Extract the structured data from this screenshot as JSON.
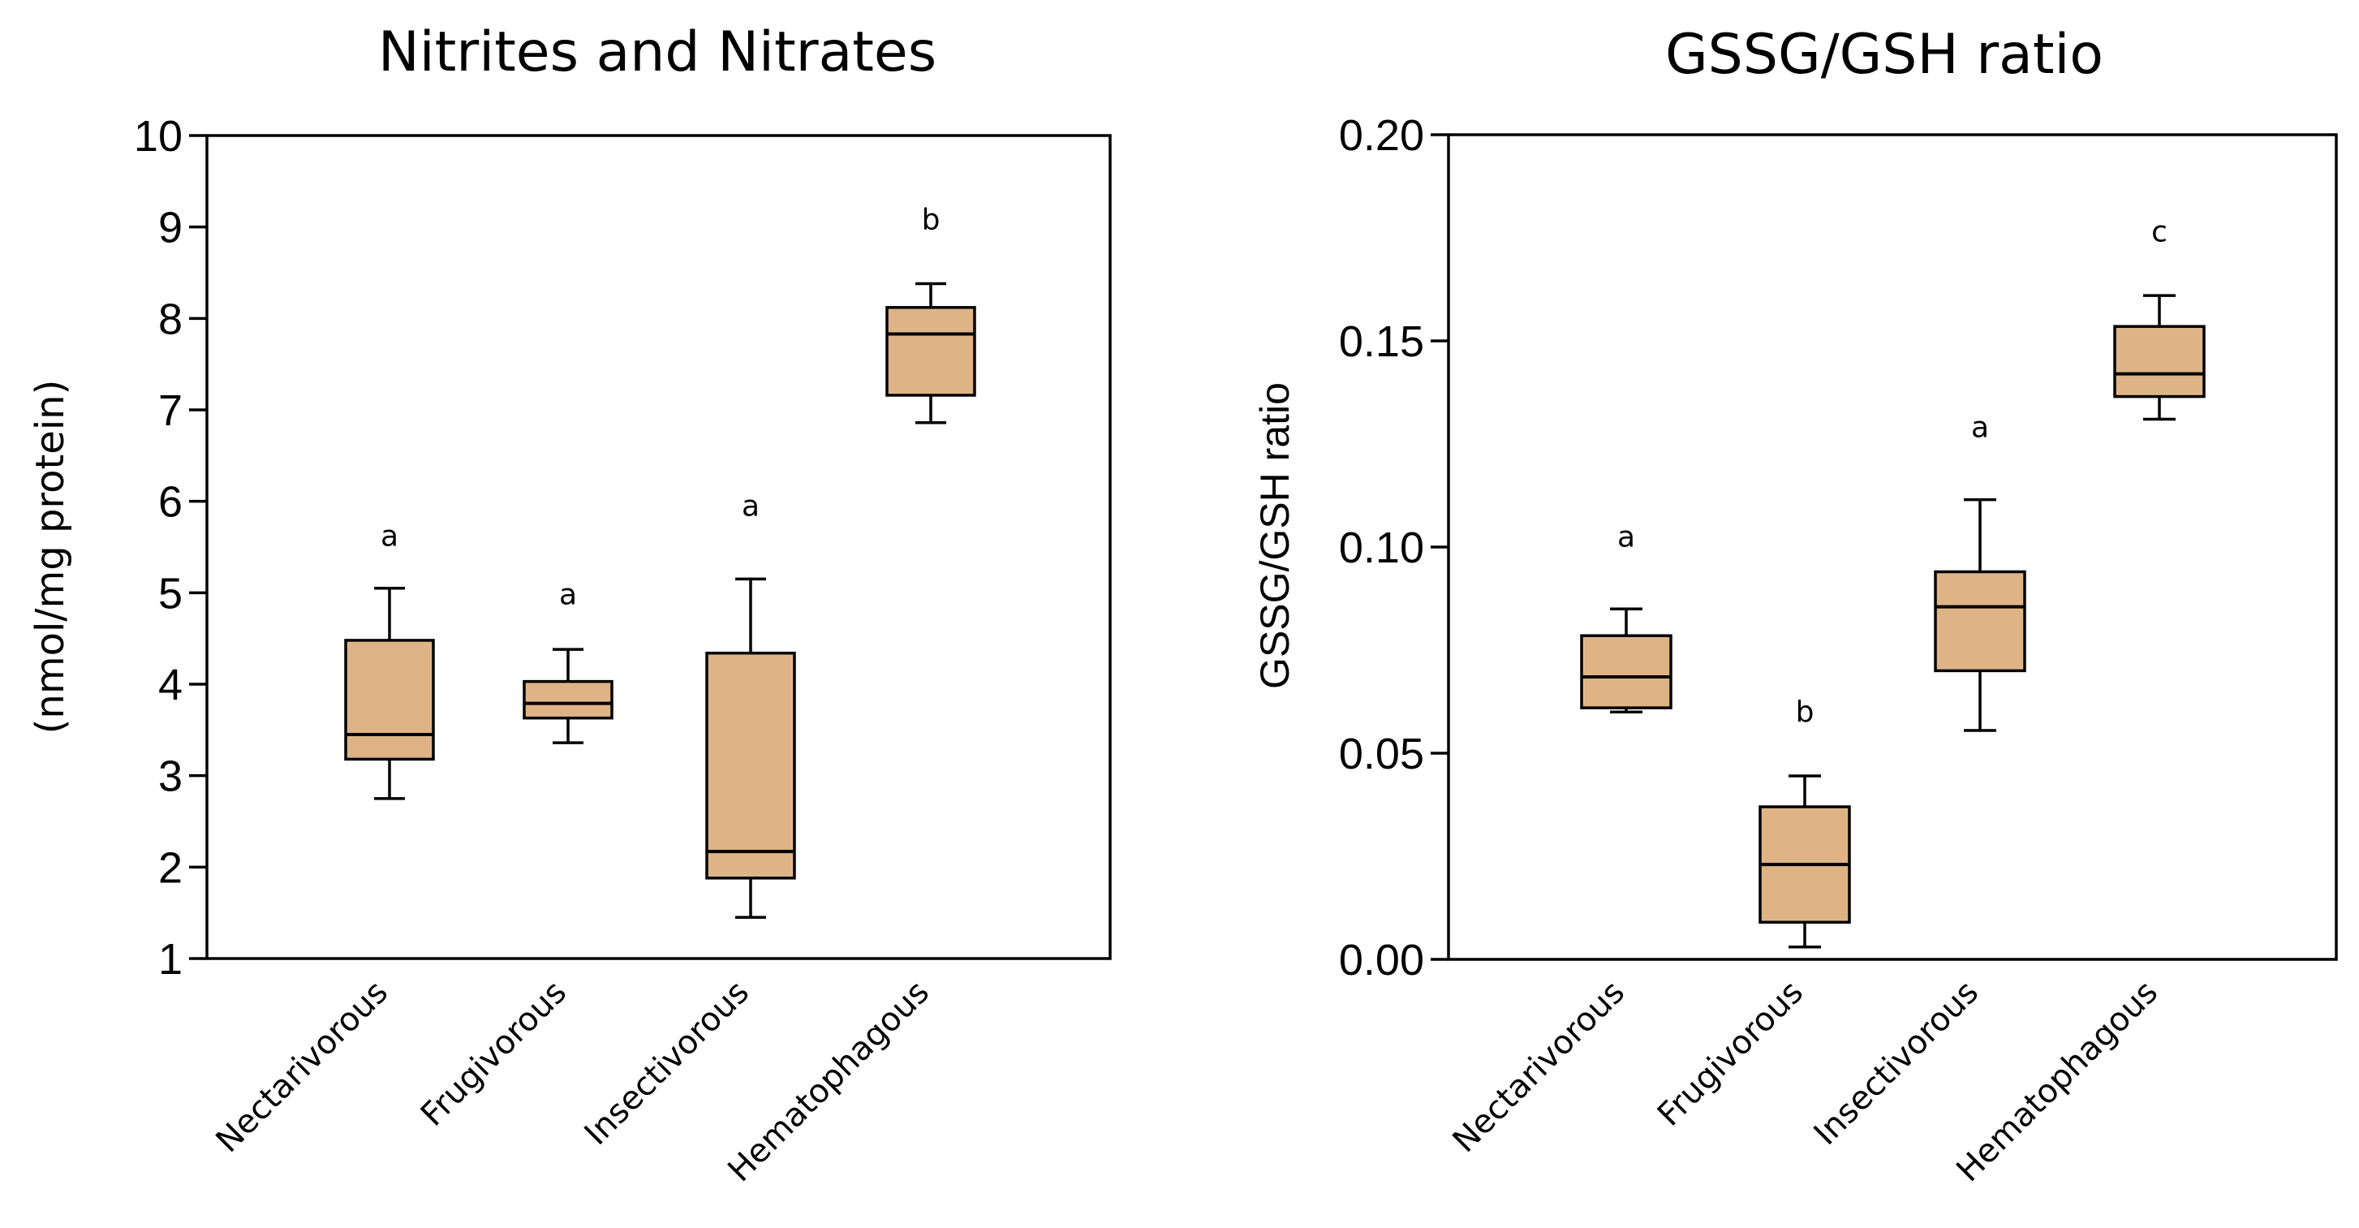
{
  "box_color": "#deb487",
  "chart_data": [
    {
      "type": "boxplot",
      "title": "Nitrites and Nitrates",
      "xlabel": "",
      "ylabel": "(nmol/mg protein)",
      "ylim": [
        1,
        10
      ],
      "yticks": [
        "1",
        "2",
        "3",
        "4",
        "5",
        "6",
        "7",
        "8",
        "9",
        "10"
      ],
      "categories": [
        "Nectarivorous",
        "Frugivorous",
        "Insectivorous",
        "Hematophagous"
      ],
      "boxes": [
        {
          "category": "Nectarivorous",
          "min": 2.75,
          "q1": 3.18,
          "median": 3.45,
          "q3": 4.48,
          "max": 5.05,
          "label": "a"
        },
        {
          "category": "Frugivorous",
          "min": 3.36,
          "q1": 3.63,
          "median": 3.79,
          "q3": 4.03,
          "max": 4.38,
          "label": "a"
        },
        {
          "category": "Insectivorous",
          "min": 1.45,
          "q1": 1.88,
          "median": 2.17,
          "q3": 4.34,
          "max": 5.15,
          "label": "a"
        },
        {
          "category": "Hematophagous",
          "min": 6.86,
          "q1": 7.16,
          "median": 7.83,
          "q3": 8.12,
          "max": 8.38,
          "label": "b"
        }
      ],
      "sig_positions": [
        5.62,
        4.98,
        5.95,
        9.08
      ]
    },
    {
      "type": "boxplot",
      "title": "GSSG/GSH ratio",
      "xlabel": "",
      "ylabel": "GSSG/GSH ratio",
      "ylim": [
        0,
        0.2
      ],
      "yticks": [
        "0.00",
        "0.05",
        "0.10",
        "0.15",
        "0.20"
      ],
      "categories": [
        "Nectarivorous",
        "Frugivorous",
        "Insectivorous",
        "Hematophagous"
      ],
      "boxes": [
        {
          "category": "Nectarivorous",
          "min": 0.06,
          "q1": 0.061,
          "median": 0.0685,
          "q3": 0.0785,
          "max": 0.085,
          "label": "a"
        },
        {
          "category": "Frugivorous",
          "min": 0.003,
          "q1": 0.009,
          "median": 0.023,
          "q3": 0.037,
          "max": 0.0445,
          "label": "b"
        },
        {
          "category": "Insectivorous",
          "min": 0.0555,
          "q1": 0.07,
          "median": 0.0855,
          "q3": 0.094,
          "max": 0.1115,
          "label": "a"
        },
        {
          "category": "Hematophagous",
          "min": 0.131,
          "q1": 0.1365,
          "median": 0.142,
          "q3": 0.1535,
          "max": 0.161,
          "label": "c"
        }
      ],
      "sig_positions": [
        0.1025,
        0.06,
        0.129,
        0.1765
      ]
    }
  ]
}
